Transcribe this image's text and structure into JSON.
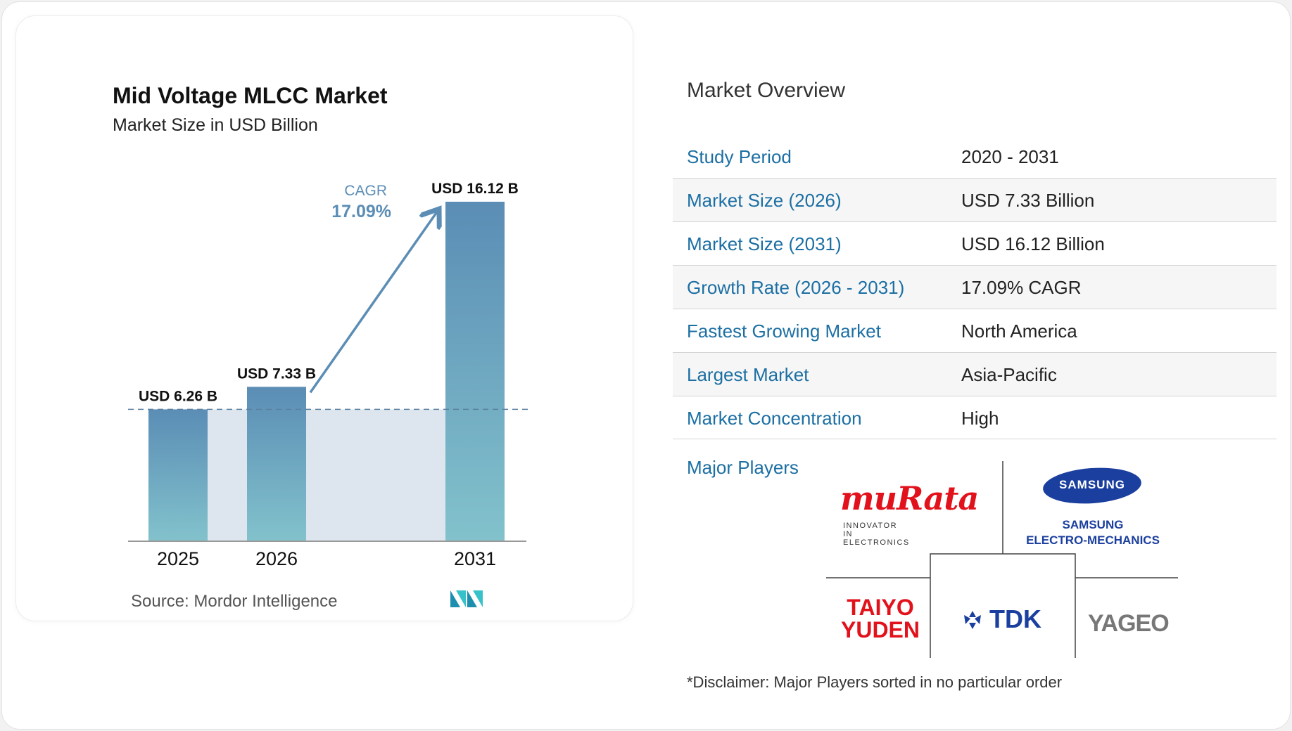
{
  "chart_data": {
    "type": "bar",
    "title": "Mid Voltage MLCC Market",
    "subtitle": "Market Size in USD Billion",
    "categories": [
      "2025",
      "2026",
      "2031"
    ],
    "values": [
      6.26,
      7.33,
      16.12
    ],
    "data_labels": [
      "USD 6.26 B",
      "USD 7.33 B",
      "USD 16.12 B"
    ],
    "ylim": [
      0,
      17.5
    ],
    "cagr_label": "CAGR",
    "cagr_value": "17.09%",
    "grid": false,
    "colors": {
      "bar_top": "#5b8db5",
      "bar_bottom": "#82c2cc",
      "band": "#dde6ee",
      "arrow": "#5b8db5",
      "cagr_text": "#5b8db5"
    }
  },
  "source": "Source:  Mordor Intelligence",
  "overview": {
    "title": "Market Overview",
    "rows": [
      {
        "key": "Study Period",
        "value": "2020 - 2031"
      },
      {
        "key": "Market Size (2026)",
        "value": "USD 7.33 Billion"
      },
      {
        "key": "Market Size (2031)",
        "value": "USD 16.12 Billion"
      },
      {
        "key": "Growth Rate (2026 - 2031)",
        "value": "17.09% CAGR"
      },
      {
        "key": "Fastest Growing Market",
        "value": "North America"
      },
      {
        "key": "Largest Market",
        "value": "Asia-Pacific"
      },
      {
        "key": "Market Concentration",
        "value": "High"
      }
    ],
    "players_label": "Major Players",
    "players": {
      "murata": {
        "name": "muRata",
        "tagline": "INNOVATOR IN ELECTRONICS"
      },
      "samsung": {
        "oval": "SAMSUNG",
        "line1": "SAMSUNG",
        "line2": "ELECTRO-MECHANICS"
      },
      "taiyo": {
        "line1": "TAIYO",
        "line2": "YUDEN"
      },
      "tdk": {
        "name": "TDK"
      },
      "yageo": {
        "name": "YAGEO"
      }
    },
    "disclaimer": "*Disclaimer: Major Players sorted in no particular order"
  }
}
